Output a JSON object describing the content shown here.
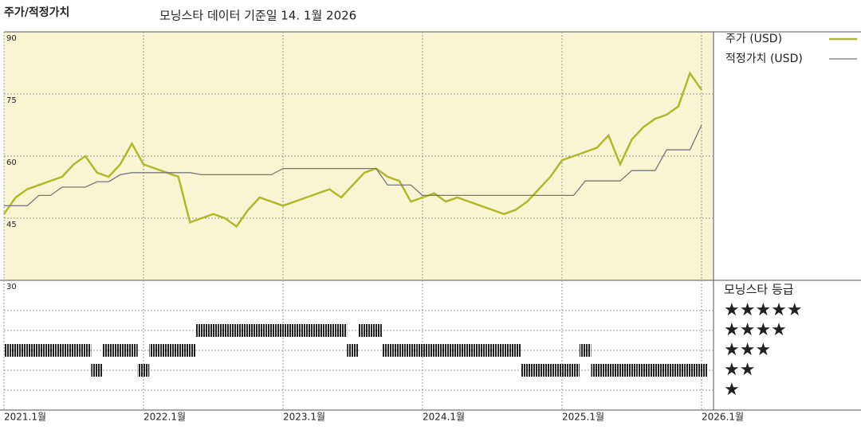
{
  "header": {
    "title": "주가/적정가치",
    "subtitle": "모닝스타 데이터 기준일 14. 1월 2026"
  },
  "chart_data": [
    {
      "type": "line",
      "x": [
        "2021-01",
        "2021-02",
        "2021-03",
        "2021-04",
        "2021-05",
        "2021-06",
        "2021-07",
        "2021-08",
        "2021-09",
        "2021-10",
        "2021-11",
        "2021-12",
        "2022-01",
        "2022-02",
        "2022-03",
        "2022-04",
        "2022-05",
        "2022-06",
        "2022-07",
        "2022-08",
        "2022-09",
        "2022-10",
        "2022-11",
        "2022-12",
        "2023-01",
        "2023-02",
        "2023-03",
        "2023-04",
        "2023-05",
        "2023-06",
        "2023-07",
        "2023-08",
        "2023-09",
        "2023-10",
        "2023-11",
        "2023-12",
        "2024-01",
        "2024-02",
        "2024-03",
        "2024-04",
        "2024-05",
        "2024-06",
        "2024-07",
        "2024-08",
        "2024-09",
        "2024-10",
        "2024-11",
        "2024-12",
        "2025-01",
        "2025-02",
        "2025-03",
        "2025-04",
        "2025-05",
        "2025-06",
        "2025-07",
        "2025-08",
        "2025-09",
        "2025-10",
        "2025-11",
        "2025-12",
        "2026-01"
      ],
      "series": [
        {
          "name": "주가 (USD)",
          "color": "#b1b82c",
          "values": [
            46,
            50,
            52,
            53,
            54,
            55,
            58,
            60,
            56,
            55,
            58,
            63,
            58,
            57,
            56,
            55,
            44,
            45,
            46,
            45,
            43,
            47,
            50,
            49,
            48,
            49,
            50,
            51,
            52,
            50,
            53,
            56,
            57,
            55,
            54,
            49,
            50,
            51,
            49,
            50,
            49,
            48,
            47,
            46,
            47,
            49,
            52,
            55,
            59,
            60,
            61,
            62,
            65,
            58,
            64,
            67,
            69,
            70,
            72,
            80,
            76
          ]
        },
        {
          "name": "적정가치 (USD)",
          "color": "#777777",
          "values": [
            48,
            48,
            48,
            50.5,
            50.5,
            52.5,
            52.5,
            52.5,
            53.8,
            53.8,
            55.5,
            56,
            56,
            56,
            56,
            56,
            56,
            55.5,
            55.5,
            55.5,
            55.5,
            55.5,
            55.5,
            55.5,
            57,
            57,
            57,
            57,
            57,
            57,
            57,
            57,
            57,
            53,
            53,
            53,
            50.5,
            50.5,
            50.5,
            50.5,
            50.5,
            50.5,
            50.5,
            50.5,
            50.5,
            50.5,
            50.5,
            50.5,
            50.5,
            50.5,
            54,
            54,
            54,
            54,
            56.5,
            56.5,
            56.5,
            61.5,
            61.5,
            61.5,
            67.5
          ]
        }
      ],
      "ylim": [
        30,
        90
      ],
      "yticks": [
        30,
        45,
        60,
        75,
        90
      ],
      "grid": true,
      "xticks": [
        {
          "value": "2021-01",
          "label": "2021.1월"
        },
        {
          "value": "2022-01",
          "label": "2022.1월"
        },
        {
          "value": "2023-01",
          "label": "2023.1월"
        },
        {
          "value": "2024-01",
          "label": "2024.1월"
        },
        {
          "value": "2025-01",
          "label": "2025.1월"
        },
        {
          "value": "2026-01",
          "label": "2026.1월"
        }
      ],
      "legend": "right"
    },
    {
      "type": "rating",
      "title": "모닝스타 등급",
      "x": [
        "2021-01",
        "2021-02",
        "2021-03",
        "2021-04",
        "2021-05",
        "2021-06",
        "2021-07",
        "2021-08",
        "2021-09",
        "2021-10",
        "2021-11",
        "2021-12",
        "2022-01",
        "2022-02",
        "2022-03",
        "2022-04",
        "2022-05",
        "2022-06",
        "2022-07",
        "2022-08",
        "2022-09",
        "2022-10",
        "2022-11",
        "2022-12",
        "2023-01",
        "2023-02",
        "2023-03",
        "2023-04",
        "2023-05",
        "2023-06",
        "2023-07",
        "2023-08",
        "2023-09",
        "2023-10",
        "2023-11",
        "2023-12",
        "2024-01",
        "2024-02",
        "2024-03",
        "2024-04",
        "2024-05",
        "2024-06",
        "2024-07",
        "2024-08",
        "2024-09",
        "2024-10",
        "2024-11",
        "2024-12",
        "2025-01",
        "2025-02",
        "2025-03",
        "2025-04",
        "2025-05",
        "2025-06",
        "2025-07",
        "2025-08",
        "2025-09",
        "2025-10",
        "2025-11",
        "2025-12",
        "2026-01"
      ],
      "values": [
        3,
        3,
        3,
        3,
        3,
        3,
        3,
        3,
        2,
        3,
        3,
        3,
        2,
        3,
        3,
        3,
        3,
        4,
        4,
        4,
        4,
        4,
        4,
        4,
        4,
        4,
        4,
        4,
        4,
        4,
        3,
        4,
        4,
        3,
        3,
        3,
        3,
        3,
        3,
        3,
        3,
        3,
        3,
        3,
        3,
        2,
        2,
        2,
        2,
        2,
        3,
        2,
        2,
        2,
        2,
        2,
        2,
        2,
        2,
        2,
        2
      ],
      "yticks": [
        {
          "value": 5,
          "label": "★★★★★"
        },
        {
          "value": 4,
          "label": "★★★★"
        },
        {
          "value": 3,
          "label": "★★★"
        },
        {
          "value": 2,
          "label": "★★"
        },
        {
          "value": 1,
          "label": "★"
        }
      ],
      "color": "#222222"
    }
  ]
}
